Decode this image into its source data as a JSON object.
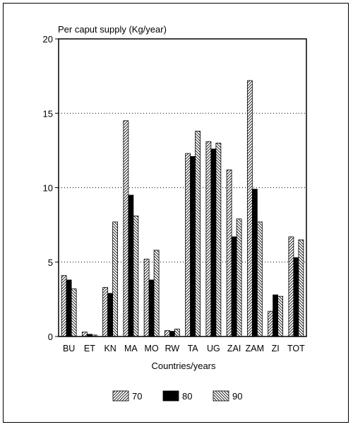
{
  "chart_data": {
    "type": "bar",
    "ylabel": "Per caput supply (Kg/year)",
    "xlabel": "Countries/years",
    "categories": [
      "BU",
      "ET",
      "KN",
      "MA",
      "MO",
      "RW",
      "TA",
      "UG",
      "ZAI",
      "ZAM",
      "ZI",
      "TOT"
    ],
    "series": [
      {
        "name": "70",
        "pattern": "hatch-forward",
        "values": [
          4.1,
          0.3,
          3.3,
          14.5,
          5.2,
          0.4,
          12.3,
          13.1,
          11.2,
          17.2,
          1.7,
          6.7
        ]
      },
      {
        "name": "80",
        "pattern": "solid",
        "values": [
          3.8,
          0.15,
          2.9,
          9.5,
          3.8,
          0.35,
          12.1,
          12.6,
          6.7,
          9.9,
          2.8,
          5.3
        ]
      },
      {
        "name": "90",
        "pattern": "hatch-back",
        "values": [
          3.2,
          0.1,
          7.7,
          8.1,
          5.8,
          0.5,
          13.8,
          13.0,
          7.9,
          7.7,
          2.7,
          6.5
        ]
      }
    ],
    "ylim": [
      0,
      20
    ],
    "yticks": [
      0,
      5,
      10,
      15,
      20
    ],
    "grid": "horizontal dotted",
    "legend_position": "bottom",
    "colors": {
      "bar_fill": "#ffffff",
      "bar_solid": "#000000",
      "hatch": "#000000"
    }
  }
}
